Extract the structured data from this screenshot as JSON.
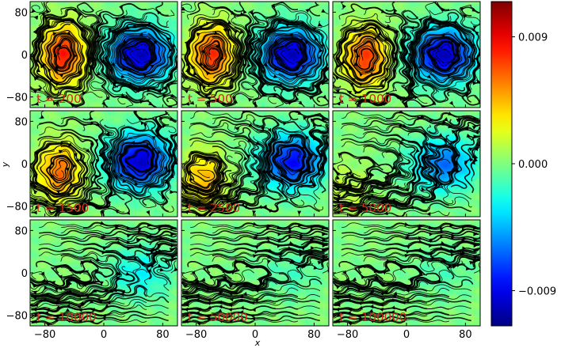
{
  "chart_data": {
    "type": "heatmap",
    "title": "",
    "subtitle": "",
    "xlabel": "x",
    "ylabel": "y",
    "xlim": [
      -100,
      100
    ],
    "ylim": [
      -100,
      100
    ],
    "x_ticks": [
      -80,
      0,
      80
    ],
    "y_ticks": [
      -80,
      0,
      80
    ],
    "x_tick_labels": [
      "−80",
      "0",
      "80"
    ],
    "y_tick_labels": [
      "−80",
      "0",
      "80"
    ],
    "grid": false,
    "colormap": "jet",
    "colorbar": {
      "vmin": -0.0115,
      "vmax": 0.0115,
      "ticks": [
        0.009,
        0.0,
        -0.009
      ],
      "tick_labels": [
        "0.009",
        "0.000",
        "−0.009"
      ]
    },
    "overlay": "streamlines",
    "panels": [
      {
        "label": "t = 200",
        "hot_amp": 0.008,
        "cold_amp": -0.01,
        "hot": [
          -55,
          0
        ],
        "cold": [
          48,
          0
        ],
        "tilt": 0.0,
        "uniform_flow": 0.0
      },
      {
        "label": "t = 500",
        "hot_amp": 0.0075,
        "cold_amp": -0.01,
        "hot": [
          -58,
          0
        ],
        "cold": [
          48,
          0
        ],
        "tilt": 0.05,
        "uniform_flow": 0.1
      },
      {
        "label": "t = 1000",
        "hot_amp": 0.0072,
        "cold_amp": -0.01,
        "hot": [
          -55,
          -5
        ],
        "cold": [
          50,
          0
        ],
        "tilt": 0.1,
        "uniform_flow": 0.2
      },
      {
        "label": "t = 1500",
        "hot_amp": 0.006,
        "cold_amp": -0.0098,
        "hot": [
          -60,
          -15
        ],
        "cold": [
          48,
          5
        ],
        "tilt": 0.2,
        "uniform_flow": 0.3
      },
      {
        "label": "t = 2500",
        "hot_amp": 0.0045,
        "cold_amp": -0.0085,
        "hot": [
          -70,
          -30
        ],
        "cold": [
          50,
          5
        ],
        "tilt": 0.25,
        "uniform_flow": 0.45
      },
      {
        "label": "t = 5000",
        "hot_amp": 0.0015,
        "cold_amp": -0.006,
        "hot": [
          -80,
          -50
        ],
        "cold": [
          50,
          0
        ],
        "tilt": 0.1,
        "uniform_flow": 0.6
      },
      {
        "label": "t = 10000",
        "hot_amp": 0.0,
        "cold_amp": -0.0028,
        "hot": [
          -80,
          0
        ],
        "cold": [
          50,
          0
        ],
        "tilt": 0.0,
        "uniform_flow": 0.8
      },
      {
        "label": "t = 50000",
        "hot_amp": 0.0,
        "cold_amp": -0.0012,
        "hot": [
          -80,
          0
        ],
        "cold": [
          50,
          0
        ],
        "tilt": 0.0,
        "uniform_flow": 0.9
      },
      {
        "label": "t = 100000",
        "hot_amp": 0.0,
        "cold_amp": -0.001,
        "hot": [
          -80,
          0
        ],
        "cold": [
          50,
          0
        ],
        "tilt": 0.0,
        "uniform_flow": 0.92
      }
    ]
  }
}
